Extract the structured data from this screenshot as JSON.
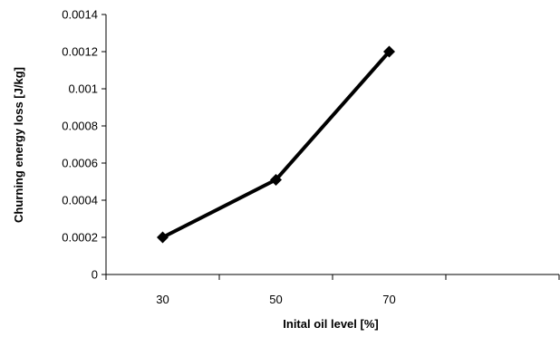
{
  "chart_data": {
    "type": "line",
    "categories": [
      "30",
      "50",
      "70"
    ],
    "series": [
      {
        "values": [
          0.0002,
          0.00051,
          0.0012
        ]
      }
    ],
    "xlabel": "Inital oil level [%]",
    "ylabel": "Churning energy loss [J/kg]",
    "ylim": [
      0,
      0.0014
    ],
    "yticks": [
      "0",
      "0.0002",
      "0.0004",
      "0.0006",
      "0.0008",
      "0.001",
      "0.0012",
      "0.0014"
    ],
    "grid": false,
    "legend": "none",
    "marker": "diamond",
    "line_color": "#000000"
  }
}
